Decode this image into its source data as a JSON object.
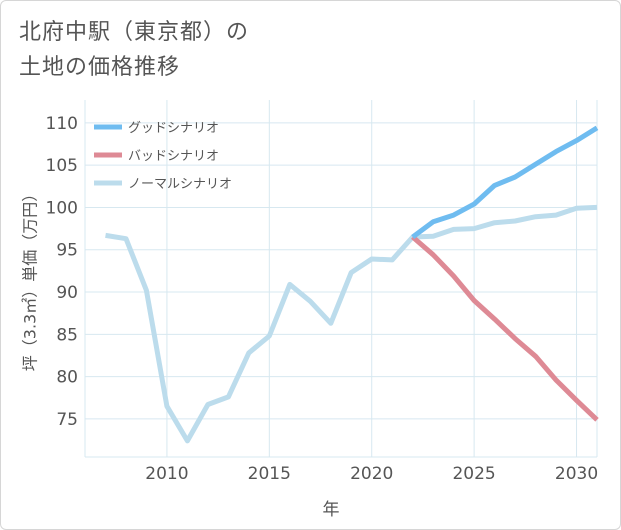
{
  "title": {
    "line1": "北府中駅（東京都）の",
    "line2": "土地の価格推移"
  },
  "chart_data": {
    "type": "line",
    "title": "北府中駅（東京都）の土地の価格推移",
    "xlabel": "年",
    "ylabel": "坪（3.3㎡）単価（万円）",
    "xlim": [
      2006,
      2031
    ],
    "ylim": [
      70.5,
      112.7
    ],
    "xticks": [
      2010,
      2015,
      2020,
      2025,
      2030
    ],
    "yticks": [
      75,
      80,
      85,
      90,
      95,
      100,
      105,
      110
    ],
    "legend_position": "top-left",
    "colors": {
      "good": "#6fbcf0",
      "bad": "#de8a95",
      "normal": "#bcdcec",
      "grid": "#d7e8f0",
      "axis_text": "#555555"
    },
    "series": [
      {
        "name": "グッドシナリオ",
        "key": "good",
        "x": [
          2022,
          2023,
          2024,
          2025,
          2026,
          2027,
          2028,
          2029,
          2030,
          2031
        ],
        "y": [
          96.5,
          98.3,
          99.1,
          100.4,
          102.6,
          103.6,
          105.1,
          106.6,
          107.9,
          109.4
        ]
      },
      {
        "name": "バッドシナリオ",
        "key": "bad",
        "x": [
          2022,
          2023,
          2024,
          2025,
          2026,
          2027,
          2028,
          2029,
          2030,
          2031
        ],
        "y": [
          96.5,
          94.4,
          91.9,
          89.0,
          86.8,
          84.5,
          82.4,
          79.6,
          77.2,
          74.9
        ]
      },
      {
        "name": "ノーマルシナリオ",
        "key": "normal",
        "x": [
          2007,
          2008,
          2009,
          2010,
          2011,
          2012,
          2013,
          2014,
          2015,
          2016,
          2017,
          2018,
          2019,
          2020,
          2021,
          2022,
          2023,
          2024,
          2025,
          2026,
          2027,
          2028,
          2029,
          2030,
          2031
        ],
        "y": [
          96.7,
          96.3,
          90.2,
          76.5,
          72.4,
          76.7,
          77.6,
          82.8,
          84.8,
          90.9,
          88.9,
          86.3,
          92.3,
          93.9,
          93.8,
          96.5,
          96.6,
          97.4,
          97.5,
          98.2,
          98.4,
          98.9,
          99.1,
          99.9,
          100.0
        ]
      }
    ]
  }
}
